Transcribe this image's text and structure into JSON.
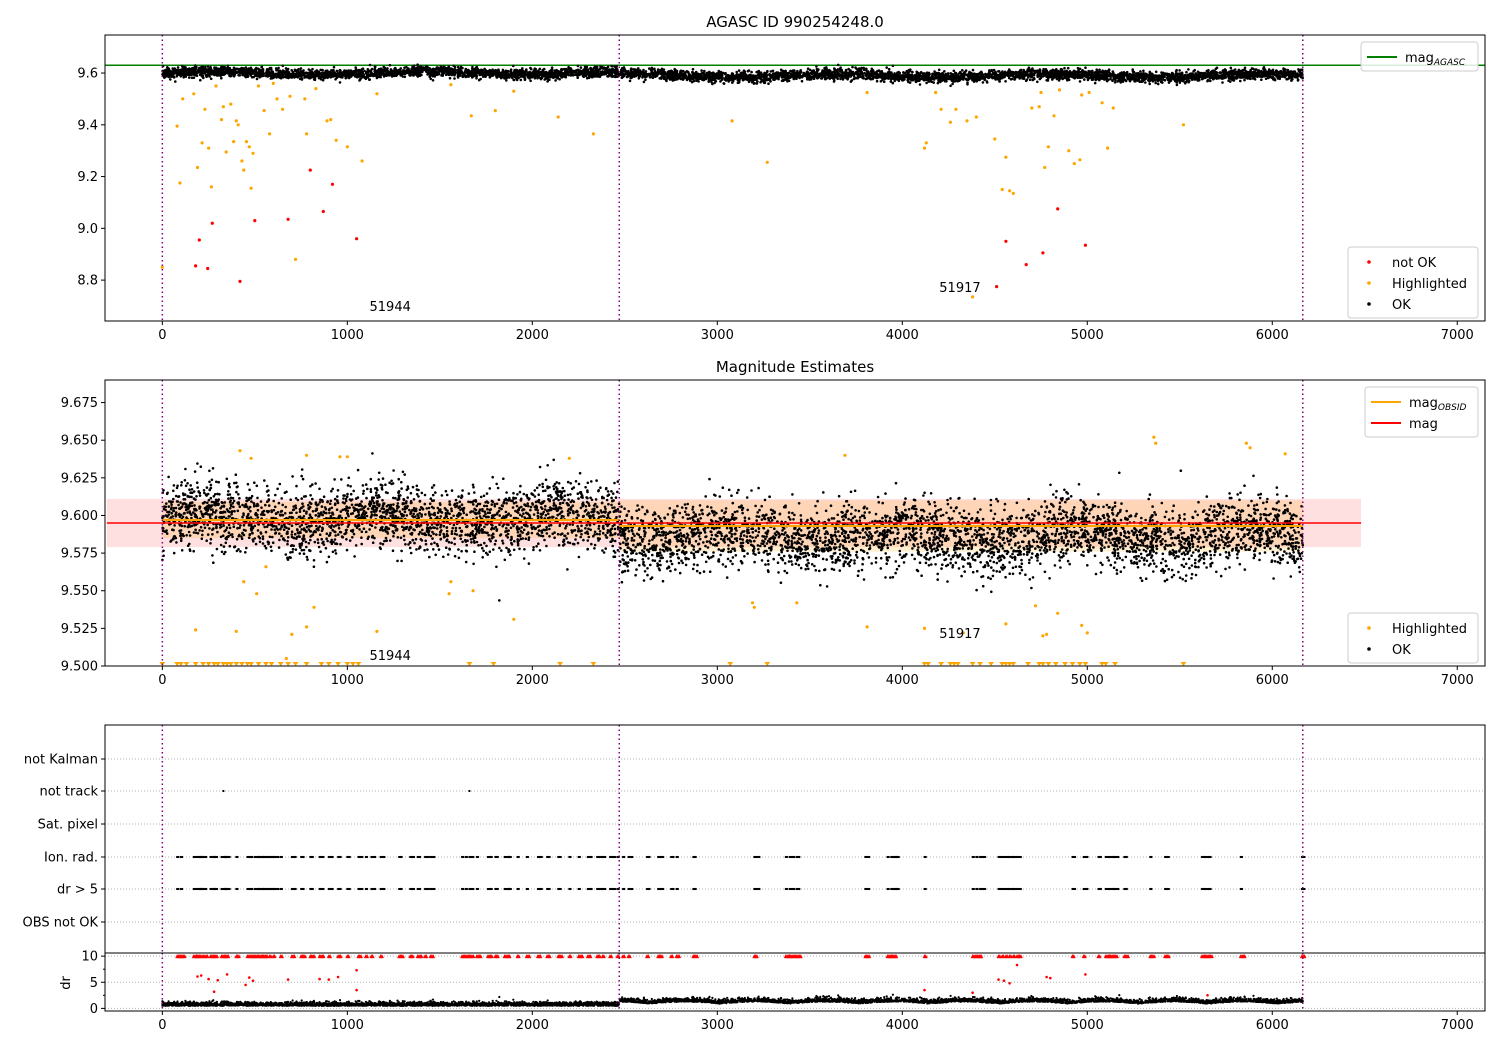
{
  "chart_data": [
    {
      "type": "scatter",
      "title": "AGASC ID 990254248.0",
      "xlim": [
        -310,
        7150
      ],
      "ylim": [
        8.642,
        9.747
      ],
      "xticks": [
        "0",
        "1000",
        "2000",
        "3000",
        "4000",
        "5000",
        "6000",
        "7000"
      ],
      "yticks": [
        "8.8",
        "9.0",
        "9.2",
        "9.4",
        "9.6"
      ],
      "xtick_values": [
        0,
        1000,
        2000,
        3000,
        4000,
        5000,
        6000,
        7000
      ],
      "ytick_values": [
        8.8,
        9.0,
        9.2,
        9.4,
        9.6
      ],
      "hlines": [
        {
          "name": "mag_AGASC",
          "y": 9.63,
          "color": "#008000"
        }
      ],
      "vlines": [
        0,
        2470,
        6165
      ],
      "annotations": [
        {
          "text": "51944",
          "x": 1120,
          "y": 8.68
        },
        {
          "text": "51917",
          "x": 4200,
          "y": 8.755
        }
      ],
      "legend_top": {
        "placement": "upper-right",
        "entries": [
          {
            "label": "mag",
            "sub": "AGASC",
            "color": "#008000"
          }
        ]
      },
      "legend_bottom": {
        "placement": "lower-right",
        "entries": [
          {
            "label": "not OK",
            "color": "#ff0000"
          },
          {
            "label": "Highlighted",
            "color": "#ffa500"
          },
          {
            "label": "OK",
            "color": "#000000"
          }
        ]
      },
      "ok_series": {
        "n": 6000,
        "x_range": [
          0,
          6165
        ],
        "mean_seg1": 9.6,
        "mean_seg2": 9.59,
        "std": 0.01
      },
      "not_ok": [
        [
          180,
          8.855
        ],
        [
          200,
          8.955
        ],
        [
          245,
          8.845
        ],
        [
          270,
          9.02
        ],
        [
          420,
          8.795
        ],
        [
          500,
          9.03
        ],
        [
          680,
          9.035
        ],
        [
          800,
          9.225
        ],
        [
          870,
          9.065
        ],
        [
          920,
          9.17
        ],
        [
          1050,
          8.96
        ],
        [
          4510,
          8.775
        ],
        [
          4560,
          8.95
        ],
        [
          4670,
          8.86
        ],
        [
          4760,
          8.905
        ],
        [
          4840,
          9.075
        ],
        [
          4990,
          8.935
        ]
      ],
      "highlighted": [
        [
          0,
          8.85
        ],
        [
          80,
          9.395
        ],
        [
          95,
          9.175
        ],
        [
          110,
          9.5
        ],
        [
          170,
          9.52
        ],
        [
          190,
          9.235
        ],
        [
          215,
          9.33
        ],
        [
          230,
          9.46
        ],
        [
          250,
          9.31
        ],
        [
          265,
          9.16
        ],
        [
          290,
          9.55
        ],
        [
          320,
          9.42
        ],
        [
          330,
          9.47
        ],
        [
          345,
          9.295
        ],
        [
          370,
          9.48
        ],
        [
          385,
          9.335
        ],
        [
          400,
          9.415
        ],
        [
          410,
          9.4
        ],
        [
          430,
          9.26
        ],
        [
          440,
          9.225
        ],
        [
          455,
          9.335
        ],
        [
          470,
          9.315
        ],
        [
          480,
          9.155
        ],
        [
          490,
          9.29
        ],
        [
          520,
          9.55
        ],
        [
          550,
          9.455
        ],
        [
          580,
          9.365
        ],
        [
          600,
          9.56
        ],
        [
          620,
          9.5
        ],
        [
          650,
          9.46
        ],
        [
          690,
          9.51
        ],
        [
          720,
          8.88
        ],
        [
          770,
          9.5
        ],
        [
          780,
          9.365
        ],
        [
          830,
          9.54
        ],
        [
          890,
          9.415
        ],
        [
          910,
          9.42
        ],
        [
          940,
          9.34
        ],
        [
          1000,
          9.315
        ],
        [
          1080,
          9.26
        ],
        [
          1160,
          9.52
        ],
        [
          1560,
          9.555
        ],
        [
          1670,
          9.435
        ],
        [
          1800,
          9.455
        ],
        [
          1900,
          9.53
        ],
        [
          2140,
          9.43
        ],
        [
          2330,
          9.365
        ],
        [
          3080,
          9.415
        ],
        [
          3270,
          9.255
        ],
        [
          3810,
          9.525
        ],
        [
          4120,
          9.31
        ],
        [
          4130,
          9.33
        ],
        [
          4180,
          9.525
        ],
        [
          4210,
          9.46
        ],
        [
          4260,
          9.41
        ],
        [
          4290,
          9.46
        ],
        [
          4350,
          9.415
        ],
        [
          4380,
          8.735
        ],
        [
          4400,
          9.43
        ],
        [
          4500,
          9.345
        ],
        [
          4540,
          9.15
        ],
        [
          4560,
          9.275
        ],
        [
          4580,
          9.145
        ],
        [
          4600,
          9.135
        ],
        [
          4700,
          9.465
        ],
        [
          4740,
          9.47
        ],
        [
          4750,
          9.525
        ],
        [
          4770,
          9.235
        ],
        [
          4790,
          9.315
        ],
        [
          4820,
          9.435
        ],
        [
          4850,
          9.535
        ],
        [
          4900,
          9.3
        ],
        [
          4930,
          9.25
        ],
        [
          4960,
          9.265
        ],
        [
          4970,
          9.515
        ],
        [
          5010,
          9.525
        ],
        [
          5080,
          9.485
        ],
        [
          5110,
          9.31
        ],
        [
          5140,
          9.465
        ],
        [
          5520,
          9.4
        ]
      ]
    },
    {
      "type": "scatter",
      "title": "Magnitude Estimates",
      "xlim": [
        -310,
        7150
      ],
      "ylim": [
        9.5,
        9.69
      ],
      "xticks": [
        "0",
        "1000",
        "2000",
        "3000",
        "4000",
        "5000",
        "6000",
        "7000"
      ],
      "yticks": [
        "9.500",
        "9.525",
        "9.550",
        "9.575",
        "9.600",
        "9.625",
        "9.650",
        "9.675"
      ],
      "xtick_values": [
        0,
        1000,
        2000,
        3000,
        4000,
        5000,
        6000,
        7000
      ],
      "ytick_values": [
        9.5,
        9.525,
        9.55,
        9.575,
        9.6,
        9.625,
        9.65,
        9.675
      ],
      "vlines": [
        0,
        2470,
        6165
      ],
      "annotations": [
        {
          "text": "51944",
          "x": 1120,
          "y": 9.504
        },
        {
          "text": "51917",
          "x": 4200,
          "y": 9.5185
        }
      ],
      "mag": {
        "value": 9.595,
        "band": [
          9.579,
          9.611
        ],
        "x_range": [
          -300,
          6480
        ],
        "color": "#ff0000"
      },
      "mag_obsid": [
        {
          "x_range": [
            0,
            2470
          ],
          "value": 9.597,
          "band": [
            9.585,
            9.609
          ]
        },
        {
          "x_range": [
            2470,
            6165
          ],
          "value": 9.593,
          "band": [
            9.576,
            9.61
          ]
        }
      ],
      "legend_top": {
        "placement": "upper-right",
        "entries": [
          {
            "label": "mag",
            "sub": "OBSID",
            "color": "#ffa500"
          },
          {
            "label": "mag",
            "sub": "",
            "color": "#ff0000"
          }
        ]
      },
      "legend_bottom": {
        "placement": "lower-right",
        "entries": [
          {
            "label": "Highlighted",
            "color": "#ffa500"
          },
          {
            "label": "OK",
            "color": "#000000"
          }
        ]
      },
      "highlighted": [
        [
          420,
          9.643
        ],
        [
          480,
          9.638
        ],
        [
          780,
          9.64
        ],
        [
          960,
          9.639
        ],
        [
          1000,
          9.639
        ],
        [
          2200,
          9.638
        ],
        [
          3690,
          9.64
        ],
        [
          5360,
          9.652
        ],
        [
          5370,
          9.648
        ],
        [
          5860,
          9.648
        ],
        [
          5880,
          9.645
        ],
        [
          6070,
          9.641
        ],
        [
          180,
          9.524
        ],
        [
          400,
          9.523
        ],
        [
          440,
          9.556
        ],
        [
          510,
          9.548
        ],
        [
          560,
          9.566
        ],
        [
          700,
          9.521
        ],
        [
          670,
          9.505
        ],
        [
          780,
          9.526
        ],
        [
          820,
          9.539
        ],
        [
          1160,
          9.523
        ],
        [
          1550,
          9.548
        ],
        [
          1560,
          9.556
        ],
        [
          1680,
          9.55
        ],
        [
          1900,
          9.531
        ],
        [
          3190,
          9.542
        ],
        [
          3200,
          9.539
        ],
        [
          3430,
          9.542
        ],
        [
          3810,
          9.526
        ],
        [
          4120,
          9.525
        ],
        [
          4330,
          9.522
        ],
        [
          4560,
          9.528
        ],
        [
          4720,
          9.54
        ],
        [
          4760,
          9.52
        ],
        [
          4780,
          9.521
        ],
        [
          4840,
          9.535
        ],
        [
          4970,
          9.527
        ],
        [
          5000,
          9.522
        ]
      ],
      "below_range_markers": [
        0,
        80,
        100,
        130,
        180,
        220,
        250,
        280,
        300,
        330,
        350,
        370,
        400,
        430,
        460,
        480,
        520,
        560,
        590,
        640,
        680,
        720,
        780,
        860,
        900,
        950,
        1000,
        1030,
        1060,
        1660,
        1790,
        2150,
        2330,
        3070,
        3270,
        4120,
        4140,
        4210,
        4260,
        4280,
        4300,
        4380,
        4420,
        4480,
        4540,
        4560,
        4580,
        4600,
        4680,
        4740,
        4760,
        4790,
        4830,
        4880,
        4920,
        4960,
        4990,
        5080,
        5100,
        5150,
        5520
      ]
    },
    {
      "type": "scatter",
      "title": "",
      "xlim": [
        -310,
        7150
      ],
      "categories": [
        "OBS not OK",
        "dr > 5",
        "Ion. rad.",
        "Sat. pixel",
        "not track",
        "not Kalman"
      ],
      "vlines": [
        0,
        2470,
        6165
      ],
      "flag_clusters": [
        80,
        100,
        170,
        185,
        200,
        215,
        230,
        260,
        275,
        320,
        335,
        350,
        400,
        460,
        480,
        500,
        520,
        540,
        560,
        580,
        600,
        640,
        700,
        750,
        800,
        850,
        900,
        950,
        1000,
        1060,
        1100,
        1130,
        1180,
        1280,
        1340,
        1380,
        1420,
        1450,
        1620,
        1640,
        1660,
        1700,
        1760,
        1800,
        1850,
        1870,
        1920,
        1970,
        2030,
        2080,
        2140,
        2200,
        2250,
        2300,
        2350,
        2380,
        2420,
        2460,
        2490,
        2520,
        2620,
        2680,
        2750,
        2780,
        2870,
        3200,
        3370,
        3390,
        3410,
        3430,
        3800,
        3920,
        3940,
        3960,
        4120,
        4380,
        4400,
        4420,
        4520,
        4540,
        4560,
        4580,
        4600,
        4620,
        4920,
        4980,
        5060,
        5100,
        5120,
        5140,
        5200,
        5340,
        5420,
        5620,
        5640,
        5660,
        5830,
        6160
      ],
      "not_track": [
        330,
        1660
      ]
    },
    {
      "type": "scatter",
      "ylabel": "dr",
      "xlim": [
        -310,
        7150
      ],
      "ylim": [
        -0.5,
        10.6
      ],
      "yticks": [
        "0",
        "5",
        "10"
      ],
      "ytick_values": [
        0,
        5,
        10
      ],
      "xticks": [
        "0",
        "1000",
        "2000",
        "3000",
        "4000",
        "5000",
        "6000",
        "7000"
      ],
      "xtick_values": [
        0,
        1000,
        2000,
        3000,
        4000,
        5000,
        6000,
        7000
      ],
      "red_points": [
        [
          190,
          6.1
        ],
        [
          210,
          6.3
        ],
        [
          300,
          5.4
        ],
        [
          350,
          6.5
        ],
        [
          280,
          3.2
        ],
        [
          250,
          5.6
        ],
        [
          450,
          4.5
        ],
        [
          470,
          5.9
        ],
        [
          490,
          5.3
        ],
        [
          680,
          5.5
        ],
        [
          850,
          5.6
        ],
        [
          900,
          5.5
        ],
        [
          950,
          6.0
        ],
        [
          1050,
          7.3
        ],
        [
          1050,
          3.5
        ],
        [
          4120,
          3.5
        ],
        [
          4380,
          3.0
        ],
        [
          4520,
          5.5
        ],
        [
          4550,
          5.3
        ],
        [
          4580,
          4.8
        ],
        [
          4620,
          8.3
        ],
        [
          4780,
          6.0
        ],
        [
          4800,
          5.8
        ],
        [
          4990,
          6.5
        ],
        [
          5650,
          2.5
        ]
      ],
      "black_series": {
        "n": 6000,
        "x_range": [
          0,
          6165
        ],
        "typical_range": [
          0,
          2.5
        ]
      }
    }
  ]
}
